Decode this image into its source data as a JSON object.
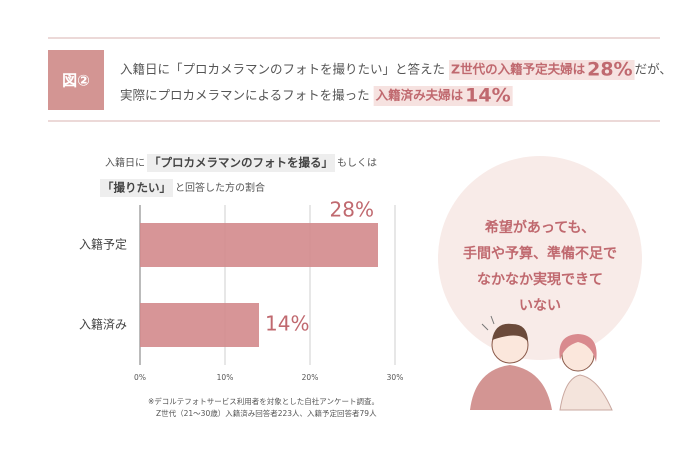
{
  "header": {
    "badge": "図②",
    "lines": [
      [
        "入籍日に「プロカメラマンのフォトを撮りたい」と答えた",
        "Z世代の入籍予定夫婦は",
        "28%",
        "だが、"
      ],
      [
        "実際にプロカメラマンによるフォトを撮った",
        "入籍済み夫婦は",
        "14%"
      ]
    ]
  },
  "chart_data": {
    "type": "barh",
    "subtitle_parts": [
      "入籍日に",
      "「プロカメラマンのフォトを撮る」",
      "もしくは",
      "「撮りたい」",
      "と回答した方の割合"
    ],
    "categories": [
      "入籍予定",
      "入籍済み"
    ],
    "values": [
      28,
      14
    ],
    "value_labels": [
      "28%",
      "14%"
    ],
    "color": "#d3898c",
    "xlim": [
      0,
      30
    ],
    "xticks": [
      {
        "value": 0,
        "label": "0%"
      },
      {
        "value": 10,
        "label": "10%"
      },
      {
        "value": 20,
        "label": "20%"
      },
      {
        "value": 30,
        "label": "30%"
      }
    ],
    "grid": true,
    "notes": [
      "※デコルテフォトサービス利用者を対象とした自社アンケート調査。",
      "Z世代（21〜30歳）入籍済み回答者223人、入籍予定回答者79人"
    ]
  },
  "bubble": {
    "lines": [
      "希望があっても、",
      "手間や予算、準備不足で",
      "なかなか実現できて",
      "いない"
    ]
  }
}
